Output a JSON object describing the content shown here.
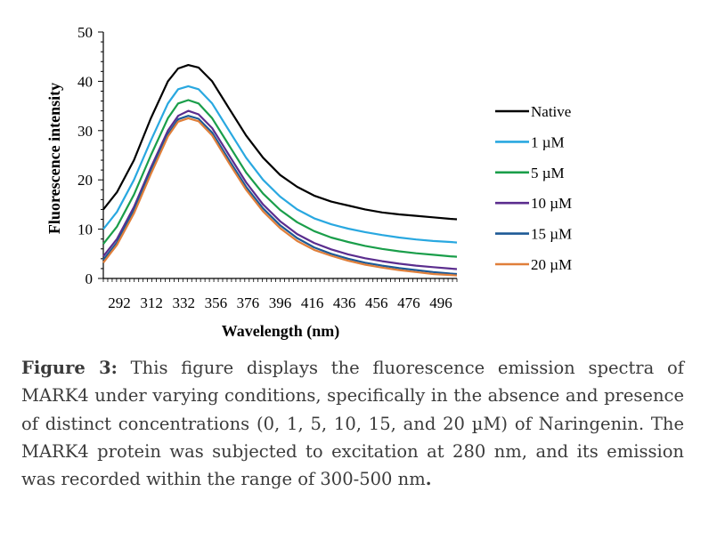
{
  "chart_data": {
    "type": "line",
    "title": "",
    "xlabel": "Wavelength (nm)",
    "ylabel": "Fluorescence intensity",
    "xlim": [
      292,
      500
    ],
    "ylim": [
      0,
      50
    ],
    "x_ticks": [
      "292",
      "312",
      "332",
      "356",
      "376",
      "396",
      "416",
      "436",
      "456",
      "476",
      "496"
    ],
    "y_ticks": [
      "0",
      "10",
      "20",
      "30",
      "40",
      "50"
    ],
    "grid": false,
    "legend_position": "right",
    "x": [
      292,
      300,
      310,
      320,
      330,
      336,
      342,
      348,
      356,
      366,
      376,
      386,
      396,
      406,
      416,
      426,
      436,
      446,
      456,
      466,
      476,
      486,
      496,
      500
    ],
    "series": [
      {
        "name": "Native",
        "color": "#000000",
        "values": [
          14.0,
          17.5,
          24.0,
          32.5,
          40.0,
          42.6,
          43.3,
          42.8,
          40.0,
          34.5,
          29.0,
          24.5,
          21.0,
          18.6,
          16.8,
          15.6,
          14.8,
          14.0,
          13.4,
          13.0,
          12.7,
          12.4,
          12.1,
          12.0
        ]
      },
      {
        "name": "1 µM",
        "color": "#29a8e0",
        "values": [
          10.0,
          13.5,
          20.0,
          28.0,
          35.5,
          38.4,
          39.0,
          38.4,
          35.5,
          30.0,
          24.5,
          20.0,
          16.6,
          14.0,
          12.2,
          11.0,
          10.1,
          9.4,
          8.8,
          8.3,
          7.9,
          7.6,
          7.4,
          7.3
        ]
      },
      {
        "name": "5 µM",
        "color": "#1a9e4a",
        "values": [
          7.0,
          10.5,
          17.0,
          25.0,
          32.5,
          35.5,
          36.2,
          35.5,
          32.5,
          27.0,
          21.5,
          17.2,
          13.9,
          11.4,
          9.6,
          8.3,
          7.4,
          6.6,
          6.0,
          5.5,
          5.1,
          4.8,
          4.5,
          4.4
        ]
      },
      {
        "name": "10 µM",
        "color": "#5b2d8e",
        "values": [
          4.5,
          8.0,
          14.5,
          22.5,
          30.0,
          33.0,
          34.0,
          33.3,
          30.5,
          25.0,
          19.5,
          15.0,
          11.6,
          9.0,
          7.2,
          5.9,
          4.9,
          4.1,
          3.5,
          3.0,
          2.6,
          2.3,
          2.0,
          1.9
        ]
      },
      {
        "name": "15 µM",
        "color": "#1d5a96",
        "values": [
          3.8,
          7.3,
          13.8,
          21.8,
          29.3,
          32.3,
          33.0,
          32.4,
          29.6,
          24.0,
          18.6,
          14.2,
          10.8,
          8.2,
          6.3,
          5.0,
          4.0,
          3.2,
          2.6,
          2.1,
          1.7,
          1.3,
          1.0,
          0.9
        ]
      },
      {
        "name": "20 µM",
        "color": "#e07f3a",
        "values": [
          3.2,
          6.8,
          13.2,
          21.2,
          28.8,
          31.8,
          32.5,
          31.9,
          29.0,
          23.4,
          18.0,
          13.6,
          10.2,
          7.6,
          5.8,
          4.6,
          3.6,
          2.8,
          2.2,
          1.7,
          1.3,
          0.9,
          0.7,
          0.6
        ]
      }
    ]
  },
  "caption": {
    "label": "Figure 3:",
    "text": "This figure displays the fluorescence emission spectra of MARK4 under varying conditions, specifically in the absence and presence of distinct concentrations (0, 1, 5, 10, 15, and 20 µM) of Naringenin. The MARK4 protein was subjected to excitation at 280 nm, and its emission was recorded within the range of 300-500 nm",
    "end": "."
  }
}
